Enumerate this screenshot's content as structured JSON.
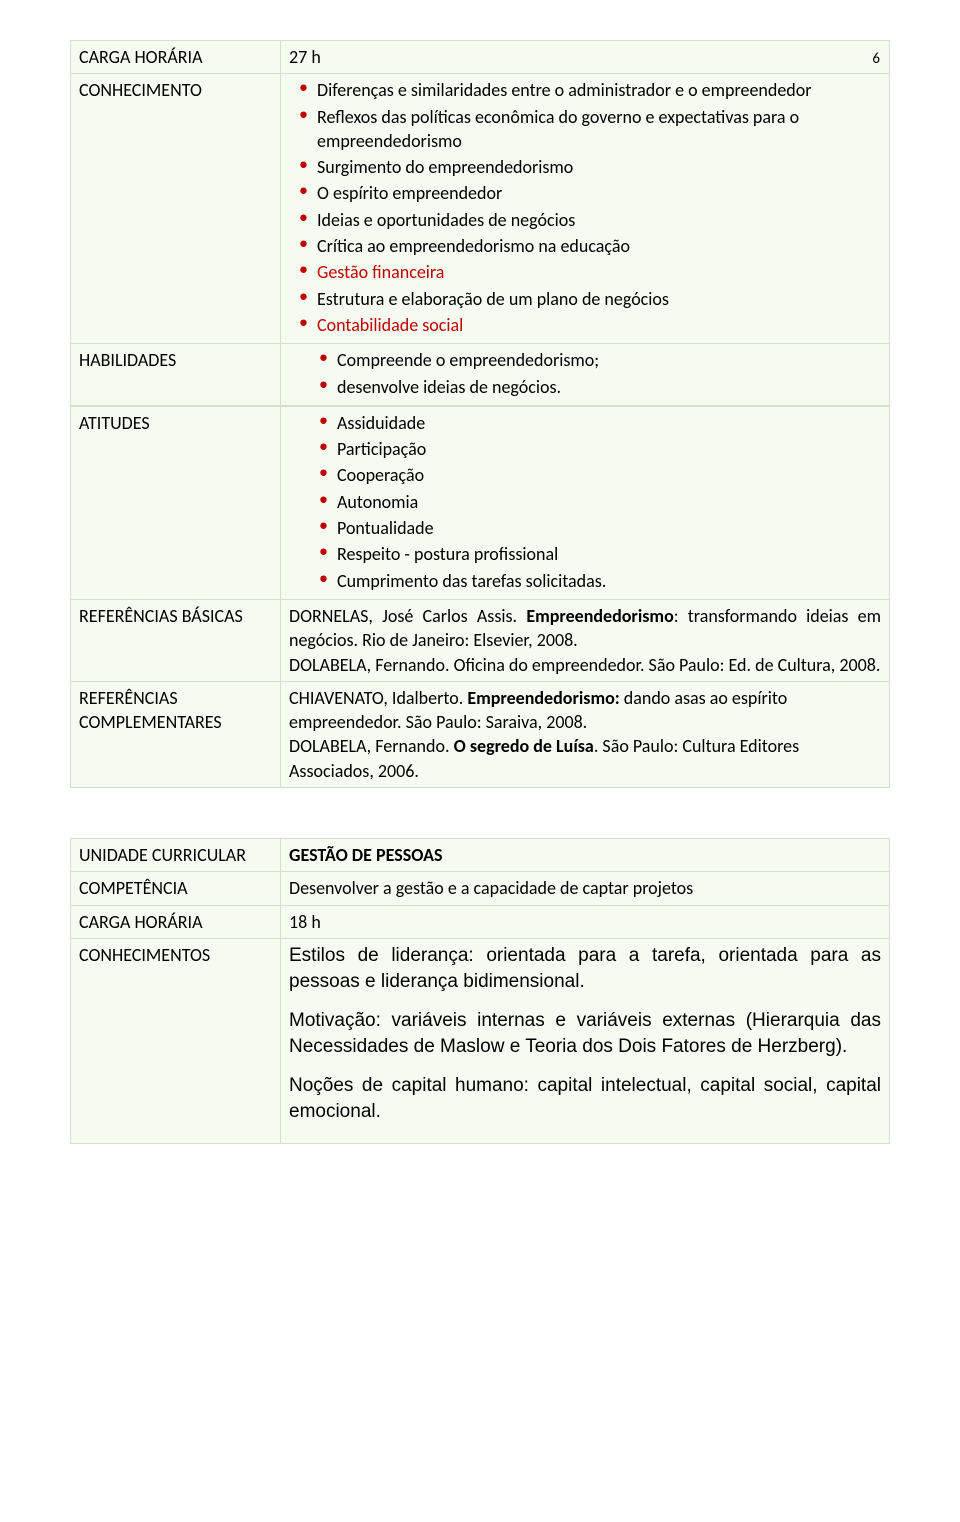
{
  "page_number": "6",
  "colors": {
    "cell_bg": "#f6fbf2",
    "cell_border": "#cfe3c6",
    "bullet": "#c00000",
    "highlight_text": "#c00000"
  },
  "table1": {
    "rows": {
      "r1_label": "CARGA HORÁRIA",
      "r1_value": "27 h",
      "r2_label": "CONHECIMENTO",
      "r2_items": [
        {
          "t": "Diferenças e similaridades entre o administrador e o empreendedor"
        },
        {
          "t": "Reflexos das políticas econômica do governo e expectativas para o empreendedorismo"
        },
        {
          "t": "Surgimento do empreendedorismo"
        },
        {
          "t": "O espírito empreendedor"
        },
        {
          "t": "Ideias e oportunidades de negócios"
        },
        {
          "t": "Crítica ao empreendedorismo na educação"
        },
        {
          "t": "Gestão financeira",
          "c": "red"
        },
        {
          "t": "Estrutura e elaboração de um plano de negócios"
        },
        {
          "t": "Contabilidade social",
          "c": "red"
        }
      ],
      "r3_label": "HABILIDADES",
      "r3_items": [
        {
          "t": "Compreende o empreendedorismo;"
        },
        {
          "t": "desenvolve ideias de negócios."
        }
      ],
      "r4_label": "ATITUDES",
      "r4_items": [
        {
          "t": "Assiduidade"
        },
        {
          "t": "Participação"
        },
        {
          "t": "Cooperação"
        },
        {
          "t": "Autonomia"
        },
        {
          "t": "Pontualidade"
        },
        {
          "t": "Respeito - postura profissional"
        },
        {
          "t": "Cumprimento das tarefas solicitadas."
        }
      ],
      "r5_label": "REFERÊNCIAS BÁSICAS",
      "r5_html": "DORNELAS, José Carlos Assis. <b>Empreendedorismo</b>: transformando ideias em negócios. Rio de Janeiro: Elsevier, 2008.<br>DOLABELA, Fernando. Oficina do empreendedor. São Paulo: Ed. de Cultura, 2008.",
      "r6_label": "REFERÊNCIAS COMPLEMENTARES",
      "r6_html": "CHIAVENATO, Idalberto. <b>Empreendedorismo:</b> dando asas ao espírito empreendedor. São Paulo: Saraiva, 2008.<br>DOLABELA, Fernando. <b>O segredo de Luísa</b>. São Paulo: Cultura Editores Associados, 2006."
    }
  },
  "table2": {
    "r1_label": "UNIDADE CURRICULAR",
    "r1_value": "GESTÃO DE PESSOAS",
    "r2_label": "COMPETÊNCIA",
    "r2_value": "Desenvolver a gestão e a capacidade de captar projetos",
    "r3_label": "CARGA HORÁRIA",
    "r3_value": "18 h",
    "r4_label": "CONHECIMENTOS",
    "r4_paras": [
      "Estilos de liderança: orientada para a tarefa, orientada para as pessoas e liderança bidimensional.",
      "Motivação: variáveis internas e variáveis externas (Hierarquia das Necessidades de Maslow e Teoria dos Dois Fatores de Herzberg).",
      "Noções de capital humano: capital intelectual, capital social, capital emocional."
    ]
  }
}
